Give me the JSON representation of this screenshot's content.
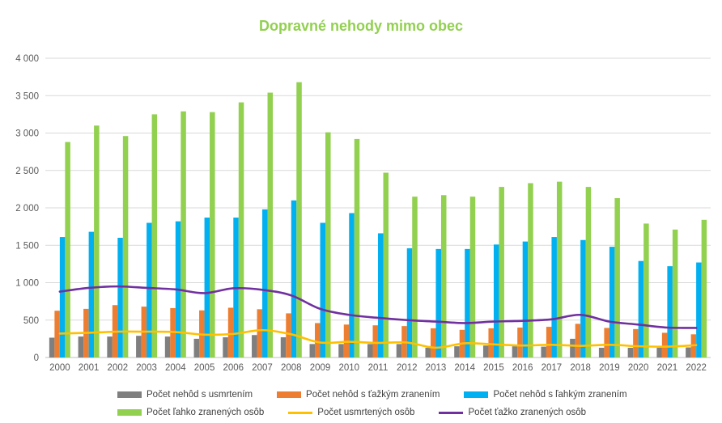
{
  "chart_data": {
    "type": "bar",
    "title": "Dopravné nehody mimo obec",
    "xlabel": "",
    "ylabel": "",
    "ylim": [
      0,
      4000
    ],
    "yticks": [
      "0",
      "500",
      "1 000",
      "1 500",
      "2 000",
      "2 500",
      "3 000",
      "3 500",
      "4 000"
    ],
    "ytick_values": [
      0,
      500,
      1000,
      1500,
      2000,
      2500,
      3000,
      3500,
      4000
    ],
    "grid": true,
    "legend_position": "bottom",
    "categories": [
      "2000",
      "2001",
      "2002",
      "2003",
      "2004",
      "2005",
      "2006",
      "2007",
      "2008",
      "2009",
      "2010",
      "2011",
      "2012",
      "2013",
      "2014",
      "2015",
      "2016",
      "2017",
      "2018",
      "2019",
      "2020",
      "2021",
      "2022"
    ],
    "series": [
      {
        "name": "Počet nehôd s usmrtením",
        "kind": "bar",
        "color": "#7f7f7f",
        "values": [
          265,
          280,
          280,
          290,
          280,
          250,
          270,
          300,
          270,
          180,
          180,
          180,
          180,
          130,
          150,
          160,
          150,
          145,
          250,
          130,
          130,
          130,
          135
        ]
      },
      {
        "name": "Počet nehôd s ťažkým zranením",
        "kind": "bar",
        "color": "#ed7d31",
        "values": [
          625,
          650,
          700,
          680,
          660,
          630,
          665,
          645,
          590,
          460,
          440,
          430,
          420,
          390,
          370,
          390,
          400,
          410,
          450,
          395,
          380,
          330,
          310
        ]
      },
      {
        "name": "Počet nehôd s ľahkým zranením",
        "kind": "bar",
        "color": "#00b0f0",
        "values": [
          1610,
          1680,
          1600,
          1800,
          1820,
          1870,
          1870,
          1980,
          2100,
          1800,
          1930,
          1660,
          1460,
          1450,
          1450,
          1510,
          1550,
          1610,
          1570,
          1480,
          1290,
          1220,
          1270
        ]
      },
      {
        "name": "Počet ľahko zranených osôb",
        "kind": "bar",
        "color": "#92d050",
        "values": [
          2880,
          3100,
          2960,
          3250,
          3290,
          3280,
          3410,
          3540,
          3680,
          3010,
          2920,
          2470,
          2150,
          2170,
          2150,
          2280,
          2330,
          2350,
          2280,
          2130,
          1790,
          1710,
          1840
        ]
      },
      {
        "name": "Počet usmrtených osôb",
        "kind": "line",
        "color": "#ffc000",
        "values": [
          320,
          330,
          345,
          345,
          340,
          305,
          315,
          365,
          310,
          200,
          210,
          195,
          200,
          130,
          190,
          175,
          160,
          170,
          155,
          170,
          150,
          145,
          165
        ]
      },
      {
        "name": "Počet ťažko zranených osôb",
        "kind": "line",
        "color": "#7030a0",
        "values": [
          880,
          930,
          950,
          930,
          910,
          860,
          925,
          905,
          830,
          650,
          570,
          530,
          500,
          480,
          460,
          480,
          490,
          510,
          570,
          480,
          440,
          400,
          395
        ]
      }
    ]
  }
}
